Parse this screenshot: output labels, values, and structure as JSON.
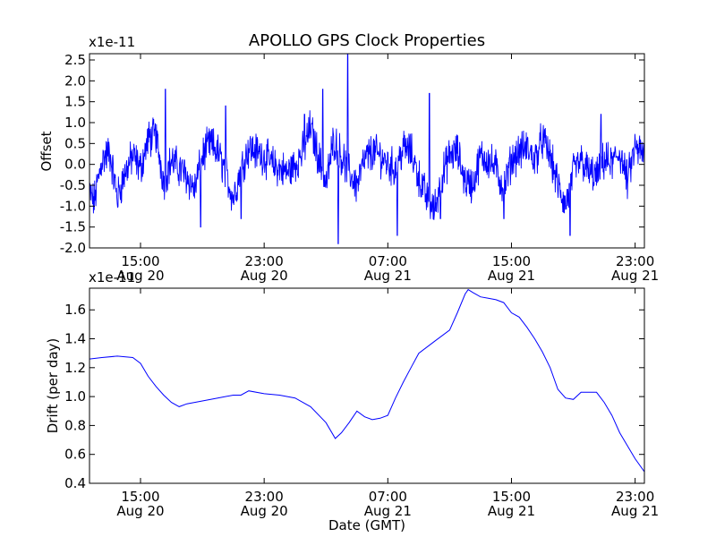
{
  "figure_title": "APOLLO GPS Clock Properties",
  "xlabel_shared": "Date (GMT)",
  "chart_data": [
    {
      "type": "line",
      "name": "offset-plot",
      "ylabel": "Offset",
      "y_multiplier": "x1e-11",
      "ylim": [
        -2.0,
        2.65
      ],
      "yticks": [
        -2.0,
        -1.5,
        -1.0,
        -0.5,
        0.0,
        0.5,
        1.0,
        1.5,
        2.0,
        2.5
      ],
      "ytick_labels": [
        "-2.0",
        "-1.5",
        "-1.0",
        "-0.5",
        "0.0",
        "0.5",
        "1.0",
        "1.5",
        "2.0",
        "2.5"
      ],
      "xlim_hours": [
        11.7,
        47.6
      ],
      "xticks_hours": [
        15,
        23,
        31,
        39,
        47
      ],
      "xtick_labels": [
        [
          "15:00",
          "Aug 20"
        ],
        [
          "23:00",
          "Aug 20"
        ],
        [
          "07:00",
          "Aug 21"
        ],
        [
          "15:00",
          "Aug 21"
        ],
        [
          "23:00",
          "Aug 21"
        ]
      ],
      "color": "#0000ff",
      "series": [
        {
          "x_hours": [
            11.7,
            12.0,
            12.5,
            13.0,
            13.5,
            14.0,
            14.5,
            15.0,
            15.5,
            16.0,
            16.5,
            17.0,
            17.5,
            18.0,
            18.5,
            19.0,
            19.5,
            20.0,
            20.5,
            21.0,
            21.5,
            22.0,
            22.5,
            23.0,
            23.5,
            24.0,
            24.5,
            25.0,
            25.5,
            26.0,
            26.5,
            27.0,
            27.5,
            28.0,
            28.5,
            29.0,
            29.5,
            30.0,
            30.5,
            31.0,
            31.5,
            32.0,
            32.5,
            33.0,
            33.5,
            34.0,
            34.5,
            35.0,
            35.5,
            36.0,
            36.5,
            37.0,
            37.5,
            38.0,
            38.5,
            39.0,
            39.5,
            40.0,
            40.5,
            41.0,
            41.5,
            42.0,
            42.5,
            43.0,
            43.5,
            44.0,
            44.5,
            45.0,
            45.5,
            46.0,
            46.5,
            47.0,
            47.6
          ],
          "values": [
            -0.7,
            -0.9,
            0.1,
            0.3,
            -0.8,
            -0.2,
            0.2,
            -0.1,
            0.6,
            0.7,
            -0.4,
            0.1,
            -0.1,
            -0.3,
            -0.6,
            0.2,
            0.5,
            0.3,
            -0.2,
            -0.8,
            -0.1,
            0.4,
            0.3,
            0.2,
            0.0,
            -0.1,
            -0.2,
            0.0,
            0.3,
            0.9,
            0.2,
            -0.5,
            0.6,
            0.2,
            -0.2,
            -0.5,
            0.1,
            0.3,
            0.2,
            0.0,
            -0.1,
            0.4,
            0.3,
            -0.3,
            -0.8,
            -1.1,
            -0.3,
            0.2,
            0.3,
            -0.4,
            -0.5,
            0.2,
            0.1,
            -0.1,
            -0.6,
            0.1,
            0.3,
            0.4,
            0.1,
            0.6,
            0.2,
            -0.5,
            -1.0,
            -0.2,
            0.1,
            -0.2,
            -0.3,
            0.1,
            0.0,
            0.3,
            -0.4,
            0.4,
            0.2
          ],
          "spikes": [
            {
              "x_hours": 16.6,
              "value": 1.8
            },
            {
              "x_hours": 18.9,
              "value": -1.5
            },
            {
              "x_hours": 20.5,
              "value": 1.4
            },
            {
              "x_hours": 21.5,
              "value": -1.3
            },
            {
              "x_hours": 25.6,
              "value": 1.2
            },
            {
              "x_hours": 26.8,
              "value": 1.8
            },
            {
              "x_hours": 27.8,
              "value": -1.9
            },
            {
              "x_hours": 28.4,
              "value": 2.65
            },
            {
              "x_hours": 31.6,
              "value": -1.7
            },
            {
              "x_hours": 33.7,
              "value": 1.7
            },
            {
              "x_hours": 34.4,
              "value": -1.3
            },
            {
              "x_hours": 38.5,
              "value": -1.3
            },
            {
              "x_hours": 42.8,
              "value": -1.7
            },
            {
              "x_hours": 44.8,
              "value": 1.2
            }
          ]
        }
      ]
    },
    {
      "type": "line",
      "name": "drift-plot",
      "ylabel": "Drift (per day)",
      "y_multiplier": "x1e-11",
      "ylim": [
        0.4,
        1.75
      ],
      "yticks": [
        0.4,
        0.6,
        0.8,
        1.0,
        1.2,
        1.4,
        1.6
      ],
      "ytick_labels": [
        "0.4",
        "0.6",
        "0.8",
        "1.0",
        "1.2",
        "1.4",
        "1.6"
      ],
      "xlim_hours": [
        11.7,
        47.6
      ],
      "xticks_hours": [
        15,
        23,
        31,
        39,
        47
      ],
      "xtick_labels": [
        [
          "15:00",
          "Aug 20"
        ],
        [
          "23:00",
          "Aug 20"
        ],
        [
          "07:00",
          "Aug 21"
        ],
        [
          "15:00",
          "Aug 21"
        ],
        [
          "23:00",
          "Aug 21"
        ]
      ],
      "xlabel": "Date (GMT)",
      "color": "#0000ff",
      "series": [
        {
          "x_hours": [
            11.7,
            12.5,
            13.5,
            14.5,
            15.0,
            15.5,
            16.0,
            16.5,
            17.0,
            17.5,
            18.0,
            19.0,
            20.0,
            21.0,
            21.5,
            22.0,
            23.0,
            24.0,
            25.0,
            26.0,
            27.0,
            27.6,
            28.0,
            28.5,
            29.0,
            29.5,
            30.0,
            30.5,
            31.0,
            31.5,
            32.0,
            32.5,
            33.0,
            34.0,
            35.0,
            35.5,
            36.0,
            36.2,
            36.5,
            37.0,
            37.5,
            38.0,
            38.5,
            39.0,
            39.5,
            40.0,
            40.5,
            41.0,
            41.5,
            42.0,
            42.5,
            43.0,
            43.5,
            44.0,
            44.5,
            45.0,
            45.5,
            46.0,
            46.5,
            47.0,
            47.6
          ],
          "values": [
            1.26,
            1.27,
            1.28,
            1.27,
            1.23,
            1.14,
            1.07,
            1.01,
            0.96,
            0.93,
            0.95,
            0.97,
            0.99,
            1.01,
            1.01,
            1.04,
            1.02,
            1.01,
            0.99,
            0.93,
            0.82,
            0.71,
            0.75,
            0.82,
            0.9,
            0.86,
            0.84,
            0.85,
            0.87,
            0.99,
            1.1,
            1.2,
            1.3,
            1.38,
            1.46,
            1.58,
            1.71,
            1.74,
            1.72,
            1.69,
            1.68,
            1.67,
            1.65,
            1.58,
            1.55,
            1.48,
            1.4,
            1.31,
            1.2,
            1.05,
            0.99,
            0.98,
            1.03,
            1.03,
            1.03,
            0.96,
            0.87,
            0.75,
            0.66,
            0.57,
            0.48
          ]
        }
      ]
    }
  ]
}
